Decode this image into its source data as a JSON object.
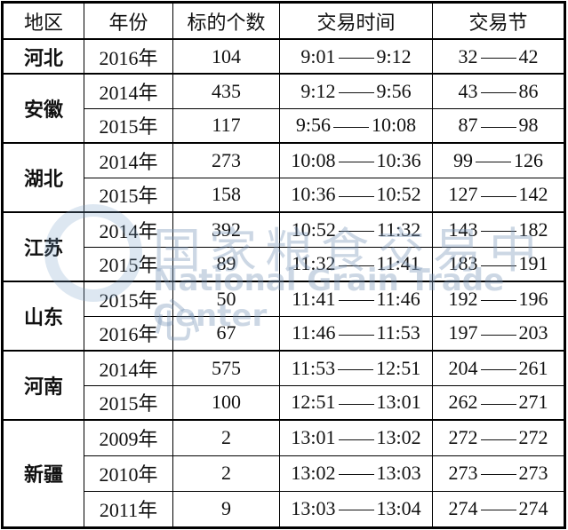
{
  "headers": [
    "地区",
    "年份",
    "标的个数",
    "交易时间",
    "交易节"
  ],
  "groups": [
    {
      "region": "河北",
      "rows": [
        {
          "year": "2016年",
          "count": "104",
          "time_start": "9:01",
          "time_end": "9:12",
          "sec_start": "32",
          "sec_end": "42"
        }
      ]
    },
    {
      "region": "安徽",
      "rows": [
        {
          "year": "2014年",
          "count": "435",
          "time_start": "9:12",
          "time_end": "9:56",
          "sec_start": "43",
          "sec_end": "86"
        },
        {
          "year": "2015年",
          "count": "117",
          "time_start": "9:56",
          "time_end": "10:08",
          "sec_start": "87",
          "sec_end": "98"
        }
      ]
    },
    {
      "region": "湖北",
      "rows": [
        {
          "year": "2014年",
          "count": "273",
          "time_start": "10:08",
          "time_end": "10:36",
          "sec_start": "99",
          "sec_end": "126"
        },
        {
          "year": "2015年",
          "count": "158",
          "time_start": "10:36",
          "time_end": "10:52",
          "sec_start": "127",
          "sec_end": "142"
        }
      ]
    },
    {
      "region": "江苏",
      "rows": [
        {
          "year": "2014年",
          "count": "392",
          "time_start": "10:52",
          "time_end": "11:32",
          "sec_start": "143",
          "sec_end": "182"
        },
        {
          "year": "2015年",
          "count": "89",
          "time_start": "11:32",
          "time_end": "11:41",
          "sec_start": "183",
          "sec_end": "191"
        }
      ]
    },
    {
      "region": "山东",
      "rows": [
        {
          "year": "2015年",
          "count": "50",
          "time_start": "11:41",
          "time_end": "11:46",
          "sec_start": "192",
          "sec_end": "196"
        },
        {
          "year": "2016年",
          "count": "67",
          "time_start": "11:46",
          "time_end": "11:53",
          "sec_start": "197",
          "sec_end": "203"
        }
      ]
    },
    {
      "region": "河南",
      "rows": [
        {
          "year": "2014年",
          "count": "575",
          "time_start": "11:53",
          "time_end": "12:51",
          "sec_start": "204",
          "sec_end": "261"
        },
        {
          "year": "2015年",
          "count": "100",
          "time_start": "12:51",
          "time_end": "13:01",
          "sec_start": "262",
          "sec_end": "271"
        }
      ]
    },
    {
      "region": "新疆",
      "rows": [
        {
          "year": "2009年",
          "count": "2",
          "time_start": "13:01",
          "time_end": "13:02",
          "sec_start": "272",
          "sec_end": "272"
        },
        {
          "year": "2010年",
          "count": "2",
          "time_start": "13:02",
          "time_end": "13:03",
          "sec_start": "273",
          "sec_end": "273"
        },
        {
          "year": "2011年",
          "count": "9",
          "time_start": "13:03",
          "time_end": "13:04",
          "sec_start": "274",
          "sec_end": "274"
        }
      ]
    }
  ],
  "watermark": {
    "cn": "国家粮食交易中心",
    "en": "National Grain Trade Center",
    "color": "#7896b9"
  }
}
